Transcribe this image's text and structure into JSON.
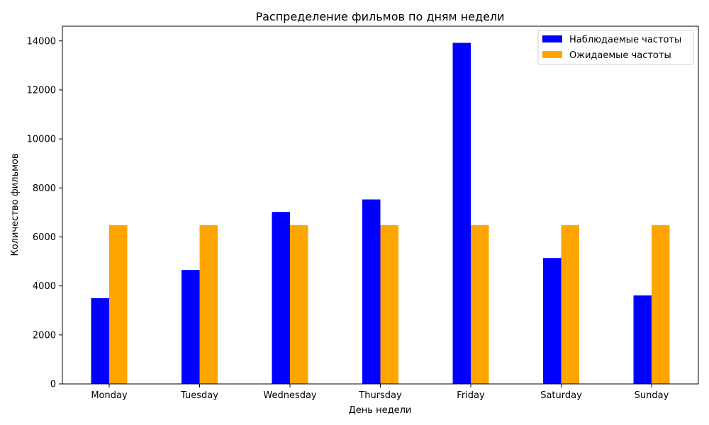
{
  "chart_data": {
    "type": "bar",
    "title": "Распределение фильмов по дням недели",
    "xlabel": "День недели",
    "ylabel": "Количество фильмов",
    "categories": [
      "Monday",
      "Tuesday",
      "Wednesday",
      "Thursday",
      "Friday",
      "Saturday",
      "Sunday"
    ],
    "series": [
      {
        "name": "Наблюдаемые частоты",
        "color": "#0000ff",
        "values": [
          3500,
          4650,
          7020,
          7530,
          13920,
          5140,
          3610
        ]
      },
      {
        "name": "Ожидаемые частоты",
        "color": "#ffa500",
        "values": [
          6480,
          6480,
          6480,
          6480,
          6480,
          6480,
          6480
        ]
      }
    ],
    "ylim": [
      0,
      14600
    ],
    "yticks": [
      0,
      2000,
      4000,
      6000,
      8000,
      10000,
      12000,
      14000
    ],
    "grid": false,
    "legend_position": "top-right"
  }
}
